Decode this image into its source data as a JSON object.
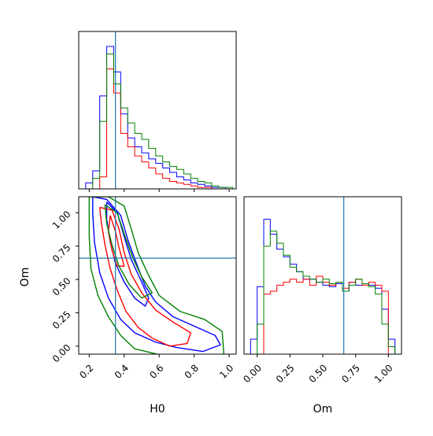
{
  "chart_data": {
    "type": "corner",
    "parameters": [
      "H0",
      "Om"
    ],
    "truths": {
      "H0": 0.35,
      "Om": 0.66
    },
    "colors": {
      "truth": "#1f77b4",
      "series": [
        "#0000ff",
        "#ff0000",
        "#008000"
      ]
    },
    "panels": [
      {
        "id": "hist-H0",
        "type": "histogram",
        "xlim": [
          0.14,
          1.04
        ],
        "ymax": 1.0,
        "bin_edges": [
          0.14,
          0.18,
          0.22,
          0.26,
          0.3,
          0.34,
          0.38,
          0.42,
          0.46,
          0.5,
          0.54,
          0.58,
          0.62,
          0.66,
          0.7,
          0.74,
          0.78,
          0.82,
          0.86,
          0.9,
          0.94,
          0.98,
          1.02
        ],
        "series": [
          {
            "values": [
              0.0,
              0.04,
              0.12,
              0.62,
              0.95,
              0.78,
              0.5,
              0.34,
              0.28,
              0.24,
              0.2,
              0.17,
              0.14,
              0.11,
              0.08,
              0.06,
              0.04,
              0.03,
              0.02,
              0.01,
              0.01,
              0.0
            ]
          },
          {
            "values": [
              0.0,
              0.0,
              0.0,
              0.08,
              0.8,
              0.64,
              0.37,
              0.28,
              0.22,
              0.18,
              0.14,
              0.1,
              0.07,
              0.05,
              0.04,
              0.03,
              0.02,
              0.01,
              0.01,
              0.0,
              0.0,
              0.0
            ]
          },
          {
            "values": [
              0.0,
              0.0,
              0.07,
              0.45,
              0.9,
              0.7,
              0.54,
              0.44,
              0.37,
              0.33,
              0.27,
              0.22,
              0.18,
              0.15,
              0.13,
              0.1,
              0.07,
              0.05,
              0.04,
              0.02,
              0.01,
              0.01
            ]
          }
        ]
      },
      {
        "id": "contour-H0-Om",
        "type": "contour",
        "xlabel": "H0",
        "ylabel": "Om",
        "xlim": [
          0.14,
          1.04
        ],
        "ylim": [
          -0.06,
          1.12
        ],
        "xticks": [
          0.2,
          0.4,
          0.6,
          0.8,
          1.0
        ],
        "xtick_labels": [
          "0.2",
          "0.4",
          "0.6",
          "0.8",
          "1.0"
        ],
        "yticks": [
          0.0,
          0.25,
          0.5,
          0.75,
          1.0
        ],
        "ytick_labels": [
          "0.00",
          "0.25",
          "0.50",
          "0.75",
          "1.00"
        ],
        "series": [
          {
            "contours": [
              [
                [
                  0.22,
                  1.12
                ],
                [
                  0.3,
                  1.1
                ],
                [
                  0.38,
                  0.98
                ],
                [
                  0.42,
                  0.8
                ],
                [
                  0.47,
                  0.62
                ],
                [
                  0.52,
                  0.45
                ],
                [
                  0.58,
                  0.33
                ],
                [
                  0.68,
                  0.22
                ],
                [
                  0.8,
                  0.15
                ],
                [
                  0.92,
                  0.08
                ],
                [
                  0.95,
                  0.01
                ],
                [
                  0.85,
                  -0.04
                ],
                [
                  0.7,
                  -0.01
                ],
                [
                  0.58,
                  0.03
                ],
                [
                  0.46,
                  0.1
                ],
                [
                  0.38,
                  0.2
                ],
                [
                  0.31,
                  0.36
                ],
                [
                  0.26,
                  0.55
                ],
                [
                  0.23,
                  0.78
                ],
                [
                  0.22,
                  1.0
                ],
                [
                  0.22,
                  1.12
                ]
              ],
              [
                [
                  0.3,
                  1.08
                ],
                [
                  0.36,
                  1.0
                ],
                [
                  0.4,
                  0.82
                ],
                [
                  0.44,
                  0.65
                ],
                [
                  0.5,
                  0.48
                ],
                [
                  0.54,
                  0.36
                ],
                [
                  0.52,
                  0.3
                ],
                [
                  0.46,
                  0.36
                ],
                [
                  0.4,
                  0.48
                ],
                [
                  0.35,
                  0.62
                ],
                [
                  0.32,
                  0.78
                ],
                [
                  0.3,
                  0.95
                ],
                [
                  0.3,
                  1.08
                ]
              ]
            ]
          },
          {
            "contours": [
              [
                [
                  0.26,
                  1.04
                ],
                [
                  0.33,
                  1.02
                ],
                [
                  0.37,
                  0.88
                ],
                [
                  0.4,
                  0.7
                ],
                [
                  0.44,
                  0.54
                ],
                [
                  0.5,
                  0.4
                ],
                [
                  0.58,
                  0.27
                ],
                [
                  0.68,
                  0.18
                ],
                [
                  0.78,
                  0.1
                ],
                [
                  0.76,
                  0.02
                ],
                [
                  0.66,
                  0.0
                ],
                [
                  0.56,
                  0.06
                ],
                [
                  0.48,
                  0.14
                ],
                [
                  0.41,
                  0.26
                ],
                [
                  0.36,
                  0.42
                ],
                [
                  0.32,
                  0.58
                ],
                [
                  0.29,
                  0.76
                ],
                [
                  0.27,
                  0.92
                ],
                [
                  0.26,
                  1.04
                ]
              ],
              [
                [
                  0.32,
                  0.98
                ],
                [
                  0.35,
                  0.86
                ],
                [
                  0.37,
                  0.74
                ],
                [
                  0.4,
                  0.6
                ],
                [
                  0.36,
                  0.6
                ],
                [
                  0.33,
                  0.72
                ],
                [
                  0.31,
                  0.86
                ],
                [
                  0.32,
                  0.98
                ]
              ]
            ]
          },
          {
            "contours": [
              [
                [
                  0.2,
                  1.12
                ],
                [
                  0.31,
                  1.12
                ],
                [
                  0.4,
                  1.05
                ],
                [
                  0.44,
                  0.88
                ],
                [
                  0.48,
                  0.7
                ],
                [
                  0.54,
                  0.53
                ],
                [
                  0.6,
                  0.38
                ],
                [
                  0.72,
                  0.26
                ],
                [
                  0.86,
                  0.2
                ],
                [
                  0.96,
                  0.11
                ],
                [
                  0.97,
                  -0.07
                ],
                [
                  0.62,
                  -0.07
                ],
                [
                  0.46,
                  -0.02
                ],
                [
                  0.38,
                  0.08
                ],
                [
                  0.31,
                  0.22
                ],
                [
                  0.25,
                  0.38
                ],
                [
                  0.21,
                  0.58
                ],
                [
                  0.2,
                  0.82
                ],
                [
                  0.2,
                  1.12
                ]
              ],
              [
                [
                  0.29,
                  1.06
                ],
                [
                  0.36,
                  1.0
                ],
                [
                  0.4,
                  0.84
                ],
                [
                  0.45,
                  0.66
                ],
                [
                  0.5,
                  0.52
                ],
                [
                  0.56,
                  0.4
                ],
                [
                  0.5,
                  0.36
                ],
                [
                  0.43,
                  0.46
                ],
                [
                  0.37,
                  0.6
                ],
                [
                  0.33,
                  0.76
                ],
                [
                  0.3,
                  0.92
                ],
                [
                  0.29,
                  1.06
                ]
              ]
            ]
          }
        ]
      },
      {
        "id": "hist-Om",
        "type": "histogram",
        "xlabel": "Om",
        "xlim": [
          -0.1,
          1.1
        ],
        "ymax": 1.0,
        "xticks": [
          0.0,
          0.25,
          0.5,
          0.75,
          1.0
        ],
        "xtick_labels": [
          "0.00",
          "0.25",
          "0.50",
          "0.75",
          "1.00"
        ],
        "bin_edges": [
          -0.1,
          -0.05,
          0.0,
          0.05,
          0.1,
          0.15,
          0.2,
          0.25,
          0.3,
          0.35,
          0.4,
          0.45,
          0.5,
          0.55,
          0.6,
          0.65,
          0.7,
          0.75,
          0.8,
          0.85,
          0.9,
          0.95,
          1.0,
          1.05,
          1.1
        ],
        "series": [
          {
            "values": [
              0.0,
              0.1,
              0.45,
              0.9,
              0.8,
              0.7,
              0.65,
              0.6,
              0.55,
              0.5,
              0.5,
              0.48,
              0.46,
              0.45,
              0.47,
              0.42,
              0.48,
              0.46,
              0.47,
              0.46,
              0.44,
              0.3,
              0.1,
              0.0
            ]
          },
          {
            "values": [
              0.0,
              0.0,
              0.0,
              0.4,
              0.42,
              0.46,
              0.48,
              0.5,
              0.48,
              0.5,
              0.46,
              0.52,
              0.48,
              0.46,
              0.48,
              0.44,
              0.48,
              0.5,
              0.46,
              0.48,
              0.46,
              0.42,
              0.0,
              0.0
            ]
          },
          {
            "values": [
              0.0,
              0.0,
              0.2,
              0.72,
              0.82,
              0.74,
              0.66,
              0.58,
              0.55,
              0.52,
              0.5,
              0.48,
              0.5,
              0.47,
              0.48,
              0.42,
              0.46,
              0.5,
              0.47,
              0.45,
              0.4,
              0.2,
              0.05,
              0.0
            ]
          }
        ]
      }
    ]
  }
}
